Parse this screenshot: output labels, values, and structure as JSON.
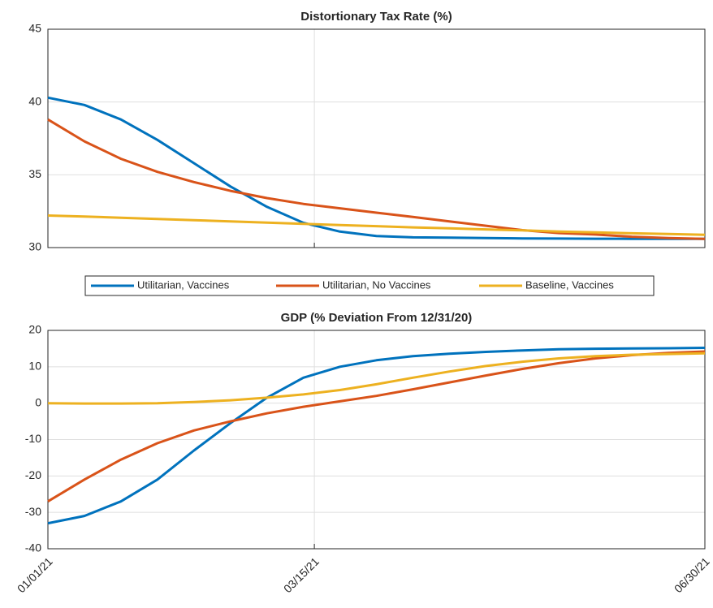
{
  "chart_data": [
    {
      "type": "line",
      "title": "Distortionary Tax Rate (%)",
      "x": [
        "2021-01-01",
        "2021-01-11",
        "2021-01-21",
        "2021-01-31",
        "2021-02-10",
        "2021-02-20",
        "2021-03-02",
        "2021-03-12",
        "2021-03-22",
        "2021-04-01",
        "2021-04-11",
        "2021-04-21",
        "2021-05-01",
        "2021-05-11",
        "2021-05-21",
        "2021-05-31",
        "2021-06-10",
        "2021-06-20",
        "2021-06-30"
      ],
      "series": [
        {
          "name": "Utilitarian, Vaccines",
          "color": "#0072bd",
          "values": [
            40.3,
            39.8,
            38.8,
            37.4,
            35.8,
            34.2,
            32.8,
            31.7,
            31.1,
            30.8,
            30.7,
            30.68,
            30.65,
            30.63,
            30.62,
            30.61,
            30.6,
            30.6,
            30.6
          ]
        },
        {
          "name": "Utilitarian, No Vaccines",
          "color": "#d95319",
          "values": [
            38.8,
            37.3,
            36.1,
            35.2,
            34.5,
            33.9,
            33.4,
            33.0,
            32.7,
            32.4,
            32.1,
            31.8,
            31.5,
            31.2,
            31.0,
            30.9,
            30.75,
            30.65,
            30.6
          ]
        },
        {
          "name": "Baseline, Vaccines",
          "color": "#edb120",
          "values": [
            32.2,
            32.13,
            32.05,
            31.97,
            31.88,
            31.8,
            31.72,
            31.63,
            31.55,
            31.47,
            31.39,
            31.32,
            31.25,
            31.18,
            31.1,
            31.04,
            30.98,
            30.93,
            30.88
          ]
        }
      ],
      "xlim": [
        "2021-01-01",
        "2021-06-30"
      ],
      "xticks": [
        "2021-01-01",
        "2021-03-15",
        "2021-06-30"
      ],
      "ylim": [
        30,
        45
      ],
      "yticks": [
        30,
        35,
        40,
        45
      ],
      "grid": true,
      "legend": "south"
    },
    {
      "type": "line",
      "title": "GDP (% Deviation From 12/31/20)",
      "x": [
        "2021-01-01",
        "2021-01-11",
        "2021-01-21",
        "2021-01-31",
        "2021-02-10",
        "2021-02-20",
        "2021-03-02",
        "2021-03-12",
        "2021-03-22",
        "2021-04-01",
        "2021-04-11",
        "2021-04-21",
        "2021-05-01",
        "2021-05-11",
        "2021-05-21",
        "2021-05-31",
        "2021-06-10",
        "2021-06-20",
        "2021-06-30"
      ],
      "series": [
        {
          "color": "#0072bd",
          "values": [
            -33,
            -31,
            -27,
            -21,
            -13,
            -5.5,
            1.5,
            7,
            10,
            11.8,
            12.9,
            13.6,
            14.1,
            14.5,
            14.8,
            14.95,
            15.05,
            15.1,
            15.2
          ]
        },
        {
          "color": "#d95319",
          "values": [
            -27,
            -21,
            -15.5,
            -11,
            -7.5,
            -5,
            -2.8,
            -1.0,
            0.5,
            2.0,
            3.8,
            5.7,
            7.6,
            9.4,
            11.0,
            12.3,
            13.2,
            13.8,
            14.2
          ]
        },
        {
          "color": "#edb120",
          "values": [
            0,
            -0.1,
            -0.1,
            0,
            0.3,
            0.8,
            1.5,
            2.4,
            3.6,
            5.2,
            7.0,
            8.7,
            10.2,
            11.4,
            12.3,
            12.9,
            13.3,
            13.5,
            13.7
          ]
        }
      ],
      "xlim": [
        "2021-01-01",
        "2021-06-30"
      ],
      "xticks": [
        {
          "value": "2021-01-01",
          "label": "01/01/21"
        },
        {
          "value": "2021-03-15",
          "label": "03/15/21"
        },
        {
          "value": "2021-06-30",
          "label": "06/30/21"
        }
      ],
      "ylim": [
        -40,
        20
      ],
      "yticks": [
        -40,
        -30,
        -20,
        -10,
        0,
        10,
        20
      ],
      "grid": true
    }
  ]
}
